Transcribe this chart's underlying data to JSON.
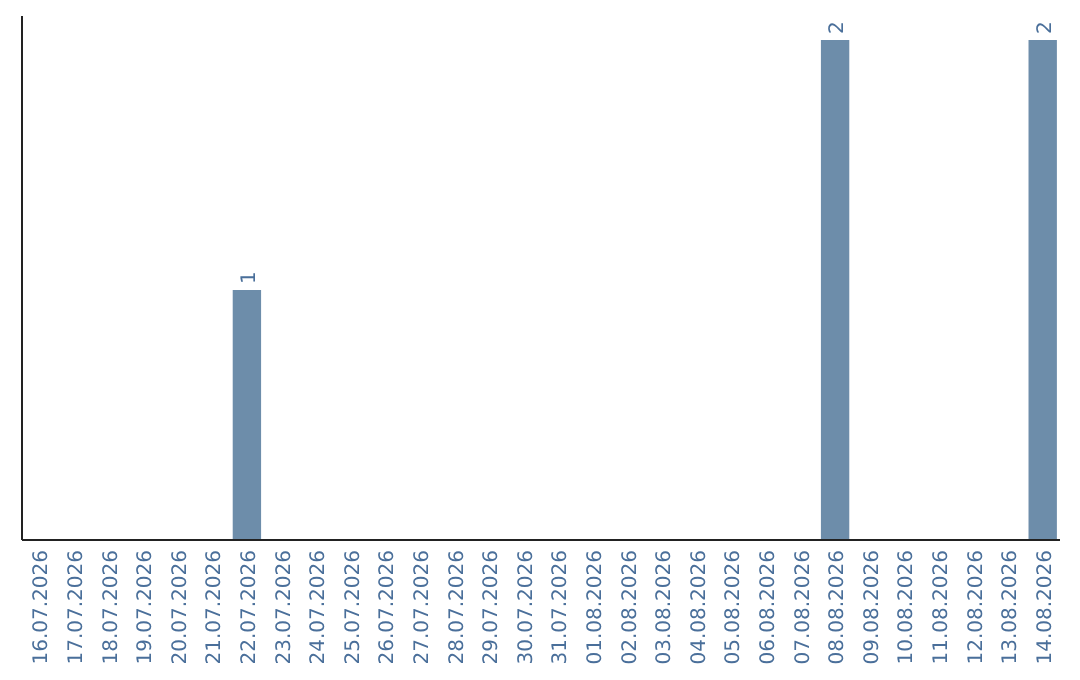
{
  "chart_data": {
    "type": "bar",
    "categories": [
      "16.07.2026",
      "17.07.2026",
      "18.07.2026",
      "19.07.2026",
      "20.07.2026",
      "21.07.2026",
      "22.07.2026",
      "23.07.2026",
      "24.07.2026",
      "25.07.2026",
      "26.07.2026",
      "27.07.2026",
      "28.07.2026",
      "29.07.2026",
      "30.07.2026",
      "31.07.2026",
      "01.08.2026",
      "02.08.2026",
      "03.08.2026",
      "04.08.2026",
      "05.08.2026",
      "06.08.2026",
      "07.08.2026",
      "08.08.2026",
      "09.08.2026",
      "10.08.2026",
      "11.08.2026",
      "12.08.2026",
      "13.08.2026",
      "14.08.2026"
    ],
    "values": [
      0,
      0,
      0,
      0,
      0,
      0,
      1,
      0,
      0,
      0,
      0,
      0,
      0,
      0,
      0,
      0,
      0,
      0,
      0,
      0,
      0,
      0,
      0,
      2,
      0,
      0,
      0,
      0,
      0,
      2
    ],
    "value_labels": [
      null,
      null,
      null,
      null,
      null,
      null,
      "1",
      null,
      null,
      null,
      null,
      null,
      null,
      null,
      null,
      null,
      null,
      null,
      null,
      null,
      null,
      null,
      null,
      "2",
      null,
      null,
      null,
      null,
      null,
      "2"
    ],
    "color": "#6d8daa"
  }
}
